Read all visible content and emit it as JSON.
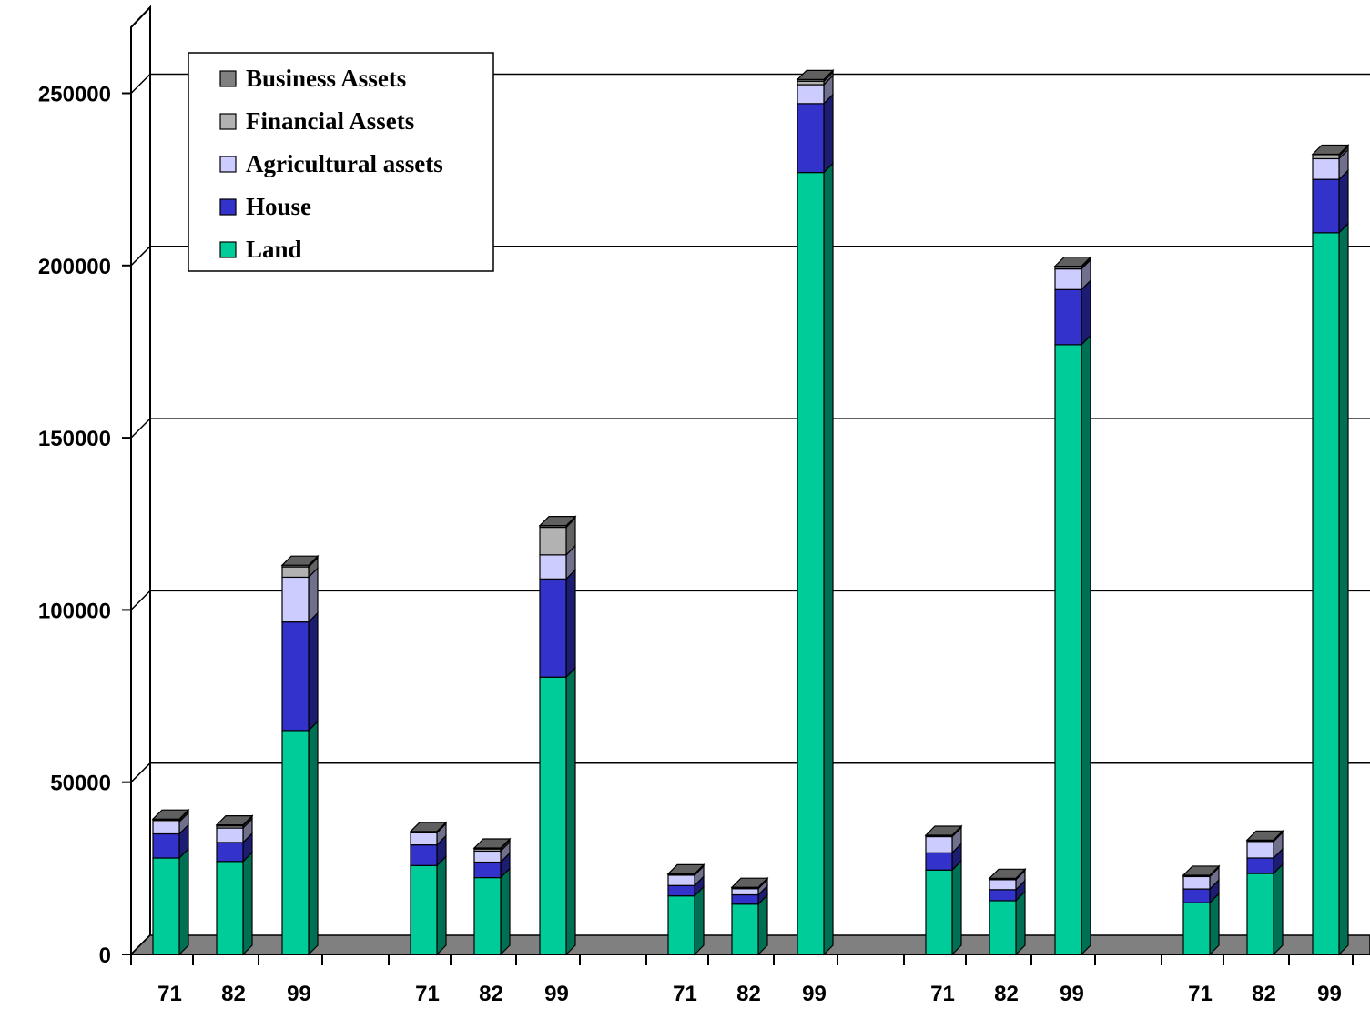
{
  "chart_data": {
    "type": "bar",
    "stacked": true,
    "three_d": true,
    "categories": [
      "71",
      "82",
      "99",
      "71",
      "82",
      "99",
      "71",
      "82",
      "99",
      "71",
      "82",
      "99",
      "71",
      "82",
      "99"
    ],
    "groups": 5,
    "bars_per_group": 3,
    "ylim": [
      0,
      250000
    ],
    "yticks": [
      0,
      50000,
      100000,
      150000,
      200000,
      250000
    ],
    "ytick_labels": [
      "0",
      "50000",
      "100000",
      "150000",
      "200000",
      "250000"
    ],
    "grid": true,
    "legend_position": "top-left",
    "series": [
      {
        "name": "Land",
        "color": "#00CC99",
        "values": [
          28000,
          27000,
          65000,
          25800,
          22300,
          80500,
          17000,
          14600,
          227000,
          24500,
          15600,
          177000,
          15000,
          23500,
          209500
        ]
      },
      {
        "name": "House",
        "color": "#3333CC",
        "values": [
          7000,
          5500,
          31500,
          6000,
          4500,
          28500,
          3000,
          2700,
          20000,
          5000,
          3200,
          16000,
          4000,
          4500,
          15500
        ]
      },
      {
        "name": "Agricultural assets",
        "color": "#CCCCFF",
        "values": [
          3500,
          4200,
          13000,
          3500,
          3200,
          7000,
          3000,
          1800,
          5500,
          4700,
          2900,
          6000,
          3600,
          4800,
          6000
        ]
      },
      {
        "name": "Financial Assets",
        "color": "#B2B2B2",
        "values": [
          500,
          600,
          3000,
          200,
          600,
          8000,
          200,
          200,
          1000,
          200,
          200,
          500,
          200,
          200,
          800
        ]
      },
      {
        "name": "Business Assets",
        "color": "#808080",
        "values": [
          300,
          300,
          500,
          200,
          300,
          500,
          200,
          200,
          500,
          200,
          200,
          300,
          200,
          200,
          500
        ]
      }
    ],
    "legend": [
      "Business Assets",
      "Financial Assets",
      "Agricultural assets",
      "House",
      "Land"
    ]
  }
}
